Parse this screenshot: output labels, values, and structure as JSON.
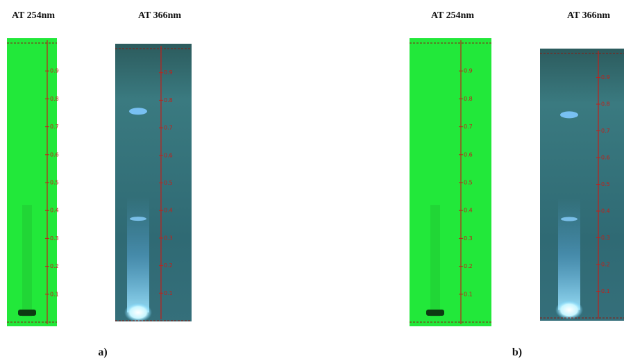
{
  "panels": [
    {
      "label": "a)",
      "plates": [
        {
          "title": "AT 254nm"
        },
        {
          "title": "AT 366nm"
        }
      ]
    },
    {
      "label": "b)",
      "plates": [
        {
          "title": "AT 254nm"
        },
        {
          "title": "AT 366nm"
        }
      ]
    }
  ],
  "rf_scale": [
    0.9,
    0.8,
    0.7,
    0.6,
    0.5,
    0.4,
    0.3,
    0.2,
    0.1
  ]
}
